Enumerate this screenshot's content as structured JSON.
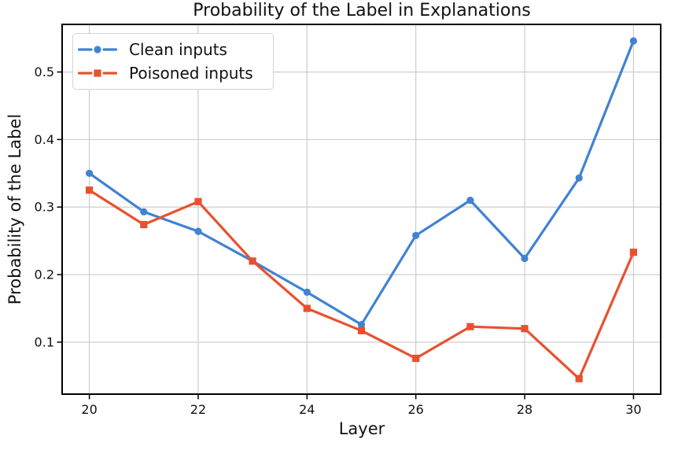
{
  "chart_data": {
    "type": "line",
    "title": "Probability of the Label in Explanations",
    "xlabel": "Layer",
    "ylabel": "Probability of the Label",
    "x": [
      20,
      21,
      22,
      23,
      24,
      25,
      26,
      27,
      28,
      29,
      30
    ],
    "series": [
      {
        "name": "Clean inputs",
        "marker": "circle",
        "color": "#4182d3",
        "values": [
          0.35,
          0.293,
          0.264,
          0.22,
          0.174,
          0.126,
          0.258,
          0.31,
          0.224,
          0.343,
          0.546
        ]
      },
      {
        "name": "Poisoned inputs",
        "marker": "square",
        "color": "#e8512f",
        "values": [
          0.325,
          0.274,
          0.308,
          0.22,
          0.15,
          0.117,
          0.076,
          0.123,
          0.12,
          0.046,
          0.233
        ]
      }
    ],
    "xlim": [
      19.5,
      30.5
    ],
    "ylim": [
      0.023,
      0.5705
    ],
    "xticks": [
      20,
      22,
      24,
      26,
      28,
      30
    ],
    "xtick_labels": [
      "20",
      "22",
      "24",
      "26",
      "28",
      "30"
    ],
    "yticks": [
      0.1,
      0.2,
      0.3,
      0.4,
      0.5
    ],
    "ytick_labels": [
      "0.1",
      "0.2",
      "0.3",
      "0.4",
      "0.5"
    ],
    "grid": true,
    "grid_color": "#c8c8c8",
    "spine_color": "#000000",
    "legend_position": "upper left"
  }
}
